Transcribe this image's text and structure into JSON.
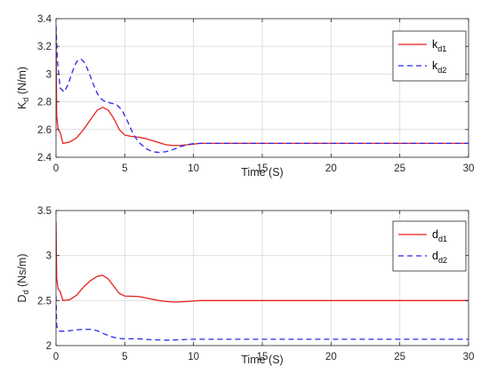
{
  "chart_data": [
    {
      "type": "line",
      "ylabel_main": "K",
      "ylabel_sub": "d",
      "ylabel_unit": " (N/m)",
      "xlabel": "Time (S)",
      "xlim": [
        0,
        30
      ],
      "ylim": [
        2.4,
        3.4
      ],
      "xticks": [
        0,
        5,
        10,
        15,
        20,
        25,
        30
      ],
      "yticks": [
        2.4,
        2.6,
        2.8,
        3.0,
        3.2,
        3.4
      ],
      "ytick_labels": [
        "2.4",
        "2.6",
        "2.8",
        "3",
        "3.2",
        "3.4"
      ],
      "grid": true,
      "legend_position": "top-right",
      "series": [
        {
          "name_main": "k",
          "name_sub": "d1",
          "color": "#e8201f",
          "dash": "solid",
          "x": [
            0,
            0.05,
            0.15,
            0.3,
            0.5,
            1.0,
            1.5,
            2.0,
            2.5,
            3.0,
            3.4,
            3.8,
            4.2,
            4.6,
            5.0,
            5.5,
            6.0,
            6.5,
            7.0,
            7.5,
            8.0,
            8.5,
            9.0,
            9.5,
            10.0,
            10.5,
            11.0,
            12.0,
            14.0,
            30.0
          ],
          "y": [
            3.32,
            2.7,
            2.6,
            2.58,
            2.5,
            2.51,
            2.54,
            2.6,
            2.67,
            2.74,
            2.76,
            2.74,
            2.68,
            2.6,
            2.56,
            2.55,
            2.545,
            2.535,
            2.52,
            2.505,
            2.49,
            2.485,
            2.485,
            2.49,
            2.495,
            2.5,
            2.5,
            2.5,
            2.5,
            2.5
          ]
        },
        {
          "name_main": "k",
          "name_sub": "d2",
          "color": "#2a27e6",
          "dash": "dashed",
          "x": [
            0,
            0.1,
            0.3,
            0.6,
            0.9,
            1.2,
            1.5,
            1.8,
            2.1,
            2.4,
            2.7,
            3.0,
            3.3,
            3.6,
            4.0,
            4.4,
            4.8,
            5.2,
            5.6,
            6.0,
            6.5,
            7.0,
            7.5,
            8.0,
            8.5,
            9.0,
            9.5,
            10.0,
            10.5,
            11.0,
            12.0,
            14.0,
            30.0
          ],
          "y": [
            3.35,
            3.1,
            2.9,
            2.87,
            2.93,
            3.02,
            3.09,
            3.11,
            3.08,
            3.01,
            2.93,
            2.86,
            2.82,
            2.8,
            2.79,
            2.78,
            2.74,
            2.66,
            2.57,
            2.51,
            2.465,
            2.44,
            2.435,
            2.44,
            2.455,
            2.475,
            2.49,
            2.498,
            2.5,
            2.5,
            2.5,
            2.5,
            2.5
          ]
        }
      ]
    },
    {
      "type": "line",
      "ylabel_main": "D",
      "ylabel_sub": "d",
      "ylabel_unit": " (Ns/m)",
      "xlabel": "Time (S)",
      "xlim": [
        0,
        30
      ],
      "ylim": [
        2,
        3.5
      ],
      "xticks": [
        0,
        5,
        10,
        15,
        20,
        25,
        30
      ],
      "yticks": [
        2,
        2.5,
        3,
        3.5
      ],
      "ytick_labels": [
        "2",
        "2.5",
        "3",
        "3.5"
      ],
      "grid": true,
      "legend_position": "top-right",
      "series": [
        {
          "name_main": "d",
          "name_sub": "d1",
          "color": "#e8201f",
          "dash": "solid",
          "x": [
            0,
            0.05,
            0.15,
            0.3,
            0.5,
            1.0,
            1.5,
            2.0,
            2.5,
            3.0,
            3.4,
            3.8,
            4.2,
            4.6,
            5.0,
            5.5,
            6.0,
            6.5,
            7.0,
            7.5,
            8.0,
            8.5,
            9.0,
            9.5,
            10.0,
            10.5,
            11.0,
            12.0,
            14.0,
            30.0
          ],
          "y": [
            3.38,
            2.75,
            2.63,
            2.6,
            2.5,
            2.51,
            2.56,
            2.65,
            2.72,
            2.77,
            2.78,
            2.74,
            2.66,
            2.58,
            2.55,
            2.548,
            2.545,
            2.53,
            2.515,
            2.5,
            2.49,
            2.485,
            2.485,
            2.49,
            2.495,
            2.5,
            2.5,
            2.5,
            2.5,
            2.5
          ]
        },
        {
          "name_main": "d",
          "name_sub": "d2",
          "color": "#2a27e6",
          "dash": "dashed",
          "x": [
            0,
            0.05,
            0.15,
            0.3,
            0.6,
            1.0,
            1.5,
            2.0,
            2.5,
            3.0,
            3.5,
            4.0,
            4.5,
            5.0,
            5.5,
            6.0,
            6.5,
            7.0,
            8.0,
            9.0,
            10.0,
            11.0,
            12.0,
            14.0,
            30.0
          ],
          "y": [
            2.55,
            2.22,
            2.17,
            2.16,
            2.16,
            2.165,
            2.175,
            2.18,
            2.18,
            2.165,
            2.13,
            2.1,
            2.08,
            2.075,
            2.075,
            2.075,
            2.07,
            2.065,
            2.06,
            2.065,
            2.07,
            2.07,
            2.07,
            2.07,
            2.07
          ]
        }
      ]
    }
  ]
}
